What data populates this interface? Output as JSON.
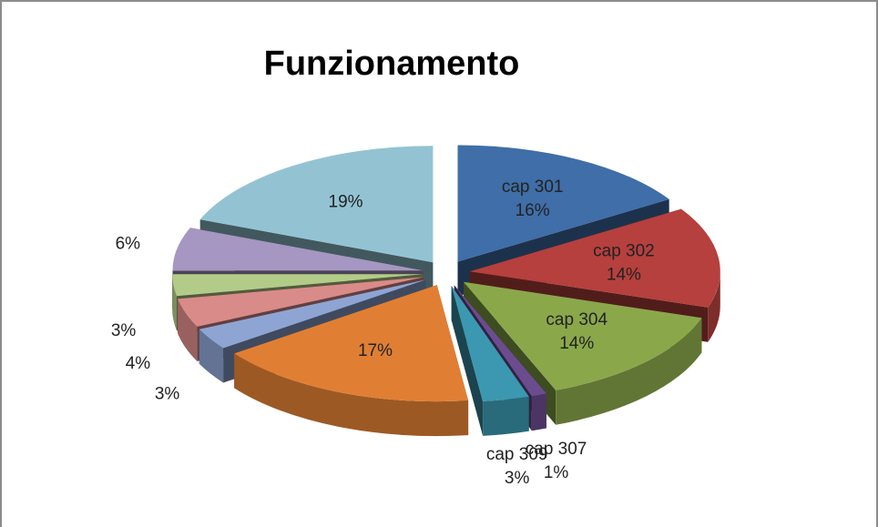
{
  "chart_data": {
    "type": "pie",
    "title": "Funzionamento",
    "categories": [
      "cap 301",
      "cap 302",
      "cap 304",
      "cap 307",
      "cap 309",
      null,
      null,
      null,
      null,
      null,
      null
    ],
    "values": [
      16,
      14,
      14,
      1,
      3,
      17,
      3,
      4,
      3,
      6,
      19
    ],
    "value_labels": [
      "16%",
      "14%",
      "14%",
      "1%",
      "3%",
      "17%",
      "3%",
      "4%",
      "3%",
      "6%",
      "19%"
    ],
    "colors": [
      "#3f6ea8",
      "#b5403d",
      "#8aa84a",
      "#6b4c8f",
      "#3b98b0",
      "#e07f34",
      "#8ea5d4",
      "#d98b89",
      "#b3cb88",
      "#a596c2",
      "#93c3d3"
    ]
  }
}
